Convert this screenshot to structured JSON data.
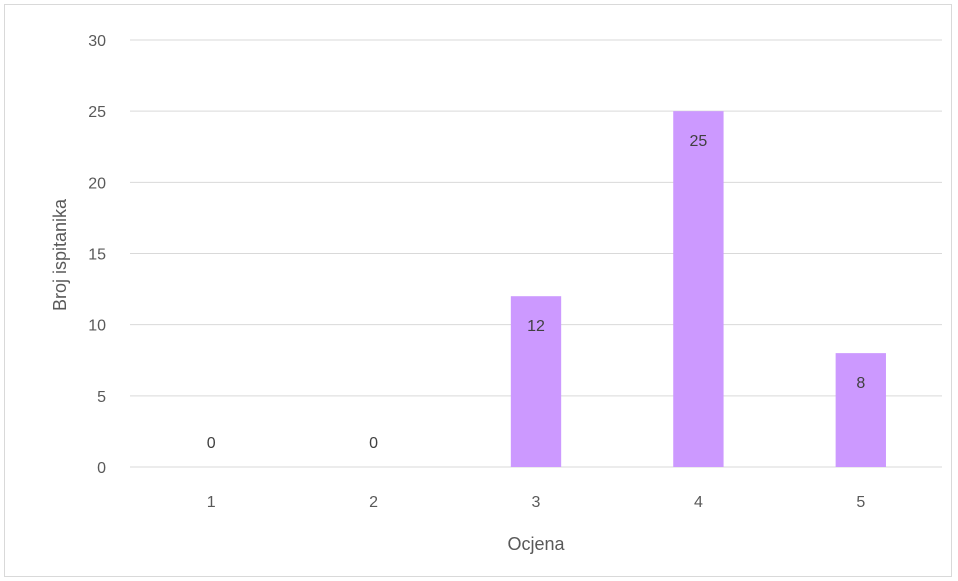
{
  "chart_data": {
    "type": "bar",
    "title": "",
    "xlabel": "Ocjena",
    "ylabel": "Broj ispitanika",
    "categories": [
      "1",
      "2",
      "3",
      "4",
      "5"
    ],
    "values": [
      0,
      0,
      12,
      25,
      8
    ],
    "ylim": [
      0,
      30
    ],
    "yticks": [
      "0",
      "5",
      "10",
      "15",
      "20",
      "25",
      "30"
    ],
    "grid": true,
    "data_labels": true,
    "colors": {
      "bar": "#cc99ff",
      "grid": "#d9d9d9",
      "axis": "#d9d9d9",
      "text": "#595959",
      "label_text": "#404040"
    }
  }
}
